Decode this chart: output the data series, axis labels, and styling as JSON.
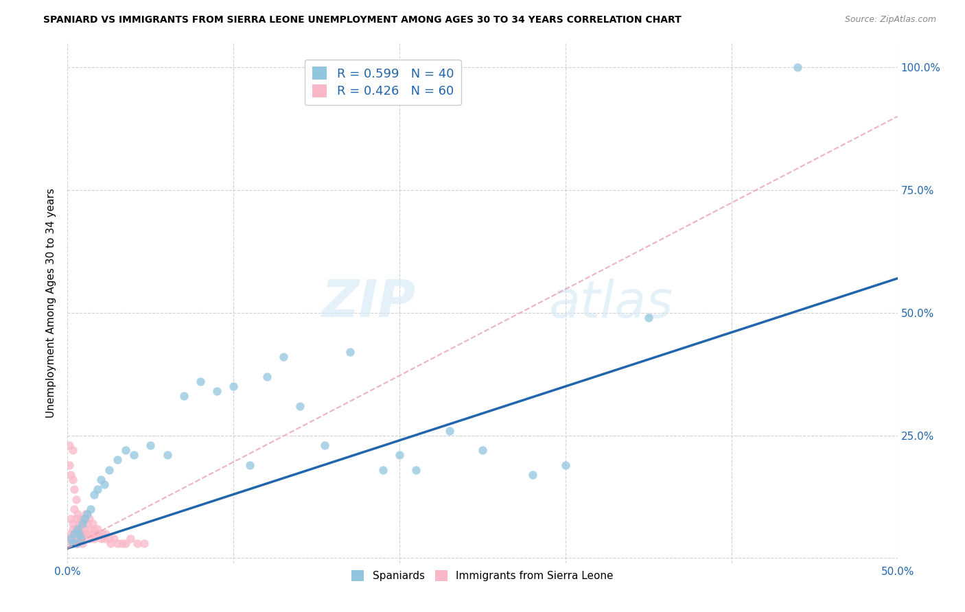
{
  "title": "SPANIARD VS IMMIGRANTS FROM SIERRA LEONE UNEMPLOYMENT AMONG AGES 30 TO 34 YEARS CORRELATION CHART",
  "source": "Source: ZipAtlas.com",
  "ylabel": "Unemployment Among Ages 30 to 34 years",
  "xlim": [
    0.0,
    0.5
  ],
  "ylim": [
    -0.01,
    1.05
  ],
  "spaniards_color": "#92c5de",
  "sierra_leone_color": "#f9b8c8",
  "spaniards_R": 0.599,
  "spaniards_N": 40,
  "sierra_leone_R": 0.426,
  "sierra_leone_N": 60,
  "blue_line_color": "#2166ac",
  "pink_line_color": "#e8a0b0",
  "watermark_zip": "ZIP",
  "watermark_atlas": "atlas",
  "blue_line_x": [
    0.0,
    0.5
  ],
  "blue_line_y": [
    0.02,
    0.57
  ],
  "pink_line_x": [
    0.0,
    0.5
  ],
  "pink_line_y": [
    0.02,
    0.9
  ],
  "spaniards_x": [
    0.002,
    0.003,
    0.004,
    0.005,
    0.006,
    0.007,
    0.008,
    0.009,
    0.01,
    0.012,
    0.014,
    0.016,
    0.018,
    0.02,
    0.022,
    0.025,
    0.03,
    0.035,
    0.04,
    0.05,
    0.06,
    0.07,
    0.08,
    0.09,
    0.1,
    0.11,
    0.12,
    0.13,
    0.14,
    0.155,
    0.17,
    0.19,
    0.2,
    0.21,
    0.23,
    0.25,
    0.28,
    0.3,
    0.35,
    0.44
  ],
  "spaniards_y": [
    0.04,
    0.03,
    0.05,
    0.03,
    0.06,
    0.05,
    0.04,
    0.07,
    0.08,
    0.09,
    0.1,
    0.13,
    0.14,
    0.16,
    0.15,
    0.18,
    0.2,
    0.22,
    0.21,
    0.23,
    0.21,
    0.33,
    0.36,
    0.34,
    0.35,
    0.19,
    0.37,
    0.41,
    0.31,
    0.23,
    0.42,
    0.18,
    0.21,
    0.18,
    0.26,
    0.22,
    0.17,
    0.19,
    0.49,
    1.0
  ],
  "sierra_leone_x": [
    0.001,
    0.001,
    0.002,
    0.002,
    0.003,
    0.003,
    0.003,
    0.004,
    0.004,
    0.005,
    0.005,
    0.005,
    0.006,
    0.006,
    0.006,
    0.007,
    0.007,
    0.008,
    0.008,
    0.009,
    0.009,
    0.01,
    0.01,
    0.011,
    0.011,
    0.012,
    0.012,
    0.013,
    0.013,
    0.014,
    0.015,
    0.015,
    0.016,
    0.016,
    0.017,
    0.018,
    0.019,
    0.02,
    0.021,
    0.022,
    0.023,
    0.025,
    0.026,
    0.028,
    0.03,
    0.033,
    0.035,
    0.038,
    0.042,
    0.046,
    0.001,
    0.001,
    0.002,
    0.003,
    0.004,
    0.005,
    0.006,
    0.007,
    0.008,
    0.009
  ],
  "sierra_leone_y": [
    0.23,
    0.19,
    0.08,
    0.17,
    0.22,
    0.16,
    0.07,
    0.1,
    0.14,
    0.08,
    0.12,
    0.06,
    0.05,
    0.09,
    0.04,
    0.07,
    0.05,
    0.08,
    0.06,
    0.07,
    0.05,
    0.08,
    0.06,
    0.09,
    0.05,
    0.07,
    0.05,
    0.08,
    0.04,
    0.06,
    0.07,
    0.05,
    0.06,
    0.04,
    0.05,
    0.06,
    0.05,
    0.04,
    0.05,
    0.04,
    0.05,
    0.04,
    0.03,
    0.04,
    0.03,
    0.03,
    0.03,
    0.04,
    0.03,
    0.03,
    0.03,
    0.04,
    0.05,
    0.06,
    0.05,
    0.04,
    0.03,
    0.04,
    0.05,
    0.03
  ]
}
